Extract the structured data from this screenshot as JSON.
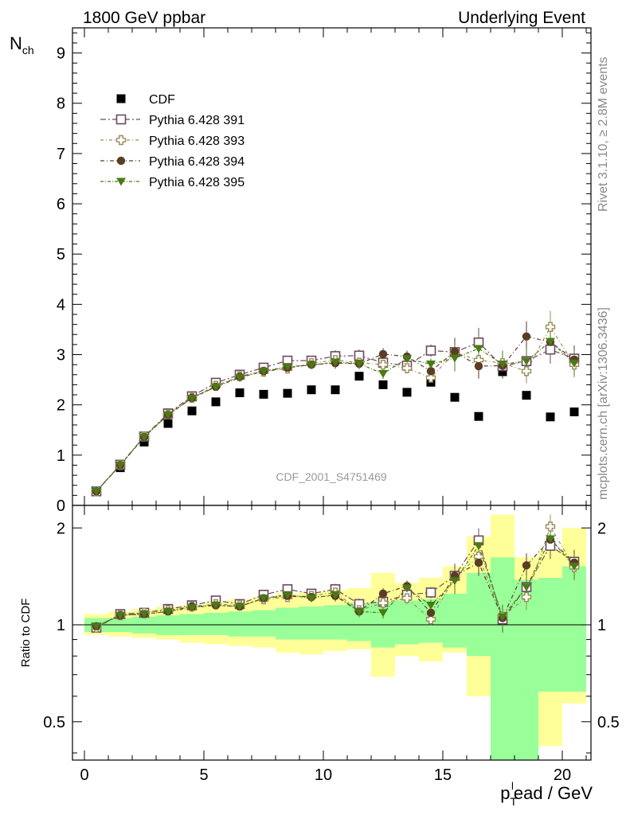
{
  "header": {
    "left": "1800 GeV ppbar",
    "right": "Underlying Event"
  },
  "side_text": {
    "top": "Rivet 3.1.10, ≥ 2.8M events",
    "bottom": "mcplots.cern.ch [arXiv:1306.3436]"
  },
  "analysis_tag": "CDF_2001_S4751469",
  "colors": {
    "cdf": "#000000",
    "p391": "#6b4a5e",
    "p393": "#9a8a56",
    "p394": "#5b3d25",
    "p395": "#4a7a14",
    "band_inner": "#99ff99",
    "band_outer": "#ffff99"
  },
  "chart_data": [
    {
      "type": "scatter",
      "panel": "main",
      "ylabel_main": "N",
      "ylabel_sub": "ch",
      "ylim": [
        0,
        9.5
      ],
      "xlim": [
        -0.5,
        21.2
      ],
      "yticks": [
        "0",
        "1",
        "2",
        "3",
        "4",
        "5",
        "6",
        "7",
        "8",
        "9"
      ],
      "legend_placement": "top-left",
      "x": [
        0.5,
        1.5,
        2.5,
        3.5,
        4.5,
        5.5,
        6.5,
        7.5,
        8.5,
        9.5,
        10.5,
        11.5,
        12.5,
        13.5,
        14.5,
        15.5,
        16.5,
        17.5,
        18.5,
        19.5,
        20.5
      ],
      "series": [
        {
          "name": "CDF",
          "key": "cdf",
          "marker": "square-filled",
          "values": [
            0.28,
            0.75,
            1.26,
            1.63,
            1.88,
            2.06,
            2.24,
            2.21,
            2.23,
            2.3,
            2.3,
            2.57,
            2.4,
            2.25,
            2.45,
            2.15,
            1.77,
            2.66,
            2.19,
            1.76,
            1.86
          ]
        },
        {
          "name": "Pythia 6.428 391",
          "key": "p391",
          "marker": "square-open",
          "values": [
            0.28,
            0.81,
            1.37,
            1.83,
            2.17,
            2.44,
            2.6,
            2.74,
            2.88,
            2.88,
            2.97,
            2.98,
            2.84,
            2.78,
            3.08,
            3.05,
            3.24,
            2.77,
            2.87,
            3.1,
            2.92
          ]
        },
        {
          "name": "Pythia 6.428 393",
          "key": "p393",
          "marker": "cross-open",
          "values": [
            0.28,
            0.8,
            1.37,
            1.81,
            2.14,
            2.38,
            2.57,
            2.66,
            2.72,
            2.83,
            2.89,
            2.84,
            2.8,
            2.73,
            2.54,
            3.04,
            2.89,
            2.83,
            2.67,
            3.55,
            2.8
          ]
        },
        {
          "name": "Pythia 6.428 394",
          "key": "p394",
          "marker": "circle-filled",
          "values": [
            0.28,
            0.8,
            1.36,
            1.8,
            2.14,
            2.36,
            2.56,
            2.67,
            2.74,
            2.8,
            2.83,
            2.82,
            3.01,
            2.96,
            2.67,
            3.06,
            2.77,
            2.78,
            3.36,
            3.25,
            2.9
          ]
        },
        {
          "name": "Pythia 6.428 395",
          "key": "p395",
          "marker": "triangle-down-filled",
          "values": [
            0.28,
            0.8,
            1.36,
            1.8,
            2.13,
            2.36,
            2.54,
            2.67,
            2.76,
            2.79,
            2.85,
            2.82,
            2.62,
            2.92,
            2.81,
            2.93,
            3.12,
            2.81,
            2.87,
            3.26,
            2.83
          ]
        }
      ]
    },
    {
      "type": "scatter",
      "panel": "ratio",
      "ylabel": "Ratio to CDF",
      "xlabel_main": "p",
      "xlabel_sub": "T",
      "xlabel_sup": "l",
      "xlabel_rest": "ead / GeV",
      "ylim": [
        0.38,
        2.35
      ],
      "xlim": [
        -0.5,
        21.2
      ],
      "xticks": [
        "0",
        "5",
        "10",
        "15",
        "20"
      ],
      "yticks": [
        "0.5",
        "1",
        "2"
      ],
      "x": [
        0.5,
        1.5,
        2.5,
        3.5,
        4.5,
        5.5,
        6.5,
        7.5,
        8.5,
        9.5,
        10.5,
        11.5,
        12.5,
        13.5,
        14.5,
        15.5,
        16.5,
        17.5,
        18.5,
        19.5,
        20.5
      ],
      "band_inner": {
        "lo": [
          0.95,
          0.95,
          0.94,
          0.93,
          0.93,
          0.93,
          0.92,
          0.92,
          0.9,
          0.9,
          0.9,
          0.89,
          0.85,
          0.87,
          0.88,
          0.85,
          0.8,
          0.3,
          0.3,
          0.62,
          0.62
        ],
        "hi": [
          1.05,
          1.05,
          1.06,
          1.07,
          1.08,
          1.09,
          1.1,
          1.11,
          1.13,
          1.14,
          1.15,
          1.17,
          1.18,
          1.19,
          1.2,
          1.25,
          1.45,
          1.62,
          1.38,
          1.4,
          1.52
        ]
      },
      "band_outer": {
        "lo": [
          0.93,
          0.92,
          0.91,
          0.9,
          0.88,
          0.87,
          0.86,
          0.85,
          0.82,
          0.81,
          0.83,
          0.84,
          0.69,
          0.8,
          0.77,
          0.82,
          0.6,
          0.3,
          0.3,
          0.42,
          0.57
        ],
        "hi": [
          1.08,
          1.1,
          1.12,
          1.14,
          1.15,
          1.18,
          1.2,
          1.22,
          1.25,
          1.26,
          1.28,
          1.3,
          1.45,
          1.35,
          1.4,
          1.52,
          1.88,
          2.2,
          1.62,
          1.7,
          2.0
        ]
      },
      "series": [
        {
          "name": "Pythia 6.428 391",
          "key": "p391",
          "marker": "square-open",
          "values": [
            0.98,
            1.08,
            1.09,
            1.12,
            1.15,
            1.19,
            1.16,
            1.24,
            1.29,
            1.25,
            1.29,
            1.16,
            1.18,
            1.24,
            1.26,
            1.42,
            1.83,
            1.04,
            1.31,
            1.76,
            1.57
          ]
        },
        {
          "name": "Pythia 6.428 393",
          "key": "p393",
          "marker": "cross-open",
          "values": [
            0.98,
            1.07,
            1.09,
            1.11,
            1.14,
            1.16,
            1.15,
            1.2,
            1.22,
            1.23,
            1.26,
            1.11,
            1.17,
            1.21,
            1.04,
            1.41,
            1.63,
            1.06,
            1.22,
            2.02,
            1.51
          ]
        },
        {
          "name": "Pythia 6.428 394",
          "key": "p394",
          "marker": "circle-filled",
          "values": [
            0.99,
            1.07,
            1.08,
            1.1,
            1.14,
            1.15,
            1.14,
            1.21,
            1.23,
            1.22,
            1.23,
            1.1,
            1.25,
            1.32,
            1.09,
            1.42,
            1.56,
            1.05,
            1.53,
            1.84,
            1.56
          ]
        },
        {
          "name": "Pythia 6.428 395",
          "key": "p395",
          "marker": "triangle-down-filled",
          "values": [
            0.99,
            1.07,
            1.08,
            1.1,
            1.13,
            1.15,
            1.14,
            1.21,
            1.24,
            1.21,
            1.24,
            1.1,
            1.09,
            1.3,
            1.15,
            1.37,
            1.76,
            1.06,
            1.31,
            1.85,
            1.52
          ]
        }
      ]
    }
  ]
}
